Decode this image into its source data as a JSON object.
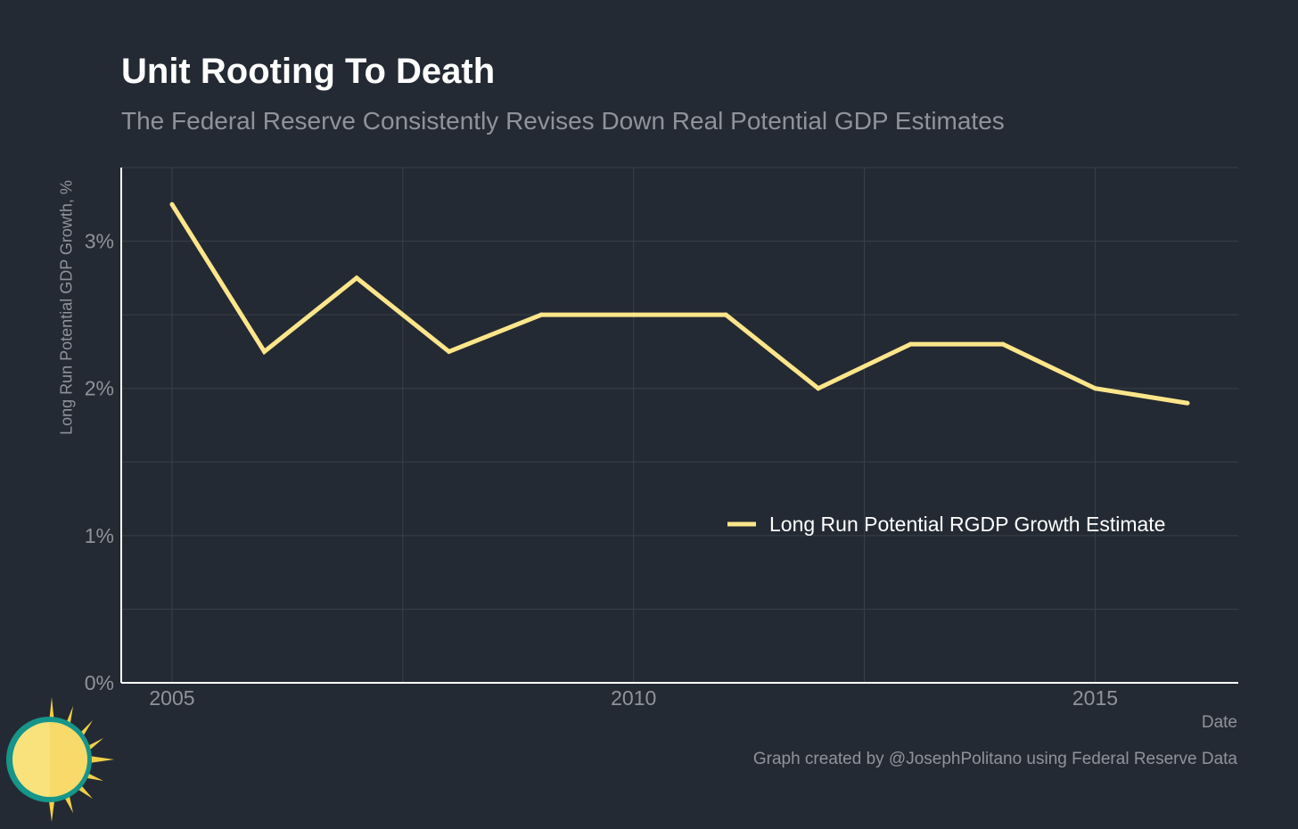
{
  "header": {
    "title": "Unit Rooting To Death",
    "subtitle": "The Federal Reserve Consistently Revises Down Real Potential GDP Estimates"
  },
  "footer": {
    "credit": "Graph created by @JosephPolitano using Federal Reserve Data"
  },
  "colors": {
    "background": "#242a33",
    "line": "#fde68a",
    "grid": "#3a4049",
    "axis": "#ffffff",
    "muted_text": "#8f949b"
  },
  "logo": {
    "icon": "sun-logo-icon"
  },
  "chart_data": {
    "type": "line",
    "title": "Unit Rooting To Death",
    "subtitle": "The Federal Reserve Consistently Revises Down Real Potential GDP Estimates",
    "xlabel": "Date",
    "ylabel": "Long Run Potential GDP Growth, %",
    "x": [
      2005,
      2006,
      2007,
      2008,
      2009,
      2010,
      2011,
      2012,
      2013,
      2014,
      2015,
      2016
    ],
    "series": [
      {
        "name": "Long Run Potential RGDP Growth Estimate",
        "values": [
          3.25,
          2.25,
          2.75,
          2.25,
          2.5,
          2.5,
          2.5,
          2.0,
          2.3,
          2.3,
          2.0,
          1.9
        ]
      }
    ],
    "xlim": [
      2004.45,
      2016.55
    ],
    "ylim": [
      0,
      3.5
    ],
    "xticks": [
      2005,
      2010,
      2015
    ],
    "xtick_labels": [
      "2005",
      "2010",
      "2015"
    ],
    "yticks": [
      0,
      1,
      2,
      3
    ],
    "ytick_labels": [
      "0%",
      "1%",
      "2%",
      "3%"
    ],
    "grid": true,
    "legend": "inside-right"
  }
}
